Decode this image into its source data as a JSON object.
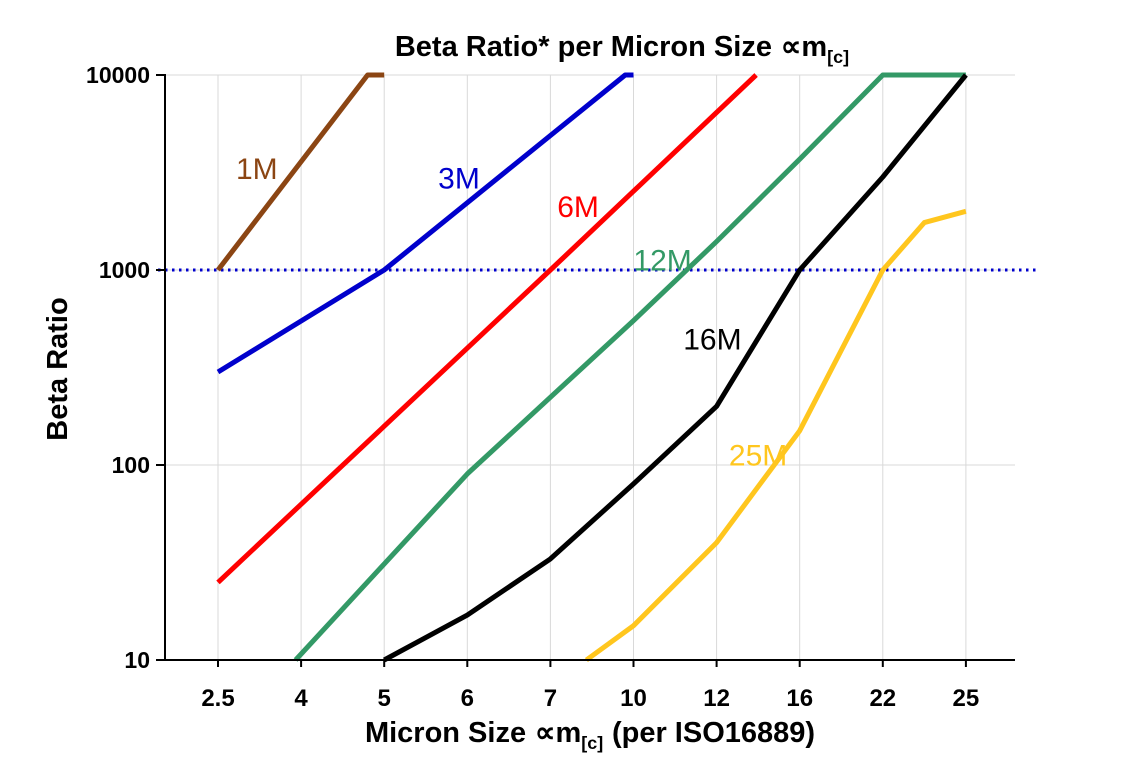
{
  "chart_data": {
    "type": "line",
    "title": {
      "text": "Beta Ratio* per Micron Size",
      "unit": "∝m",
      "unit_sub": "[c]"
    },
    "ylabel": "Beta Ratio",
    "xlabel": {
      "prefix": "Micron Size",
      "unit": "∝m",
      "unit_sub": "[c]",
      "suffix": "(per ISO16889)"
    },
    "x_scale": "ordinal",
    "y_scale": "log",
    "ylim": [
      10,
      10000
    ],
    "y_ticks": [
      10,
      100,
      1000,
      10000
    ],
    "categories": [
      2.5,
      4,
      5,
      6,
      7,
      10,
      12,
      16,
      22,
      25
    ],
    "grid": true,
    "legend": "inline-labels",
    "reference_line": {
      "y": 1000,
      "color": "#0000CC",
      "style": "dotted"
    },
    "series": [
      {
        "name": "1M",
        "color": "#8B4513",
        "points": [
          [
            2.5,
            1000
          ],
          [
            4.8,
            10000
          ],
          [
            5,
            10000
          ]
        ],
        "label_at": [
          3.2,
          3300
        ]
      },
      {
        "name": "3M",
        "color": "#0000CC",
        "points": [
          [
            2.5,
            300
          ],
          [
            5,
            1000
          ],
          [
            9.7,
            10000
          ],
          [
            10,
            10000
          ]
        ],
        "label_at": [
          5.9,
          2950
        ]
      },
      {
        "name": "6M",
        "color": "#FF0000",
        "points": [
          [
            2.5,
            25
          ],
          [
            7,
            1000
          ],
          [
            13.9,
            10000
          ]
        ],
        "label_at": [
          8.0,
          2100
        ]
      },
      {
        "name": "12M",
        "color": "#339966",
        "points": [
          [
            3.9,
            10
          ],
          [
            6,
            90
          ],
          [
            10,
            550
          ],
          [
            12,
            1400
          ],
          [
            16,
            3700
          ],
          [
            22,
            10000
          ],
          [
            25,
            10000
          ]
        ],
        "label_at": [
          10.7,
          1120
        ]
      },
      {
        "name": "16M",
        "color": "#000000",
        "points": [
          [
            5,
            10
          ],
          [
            6,
            17
          ],
          [
            7,
            33
          ],
          [
            10,
            80
          ],
          [
            12,
            200
          ],
          [
            16,
            1000
          ],
          [
            22,
            3000
          ],
          [
            25,
            10000
          ]
        ],
        "label_at": [
          11.9,
          440
        ]
      },
      {
        "name": "25M",
        "color": "#FFC61E",
        "points": [
          [
            8.3,
            10
          ],
          [
            10,
            15
          ],
          [
            12,
            40
          ],
          [
            16,
            150
          ],
          [
            22,
            1000
          ],
          [
            23.5,
            1750
          ],
          [
            25,
            2000
          ]
        ],
        "label_at": [
          14,
          112
        ]
      }
    ]
  },
  "style": {
    "grid_color": "#D9D9D9",
    "axis_color": "#000000",
    "tick_label_color": "#000000",
    "background": "#FFFFFF"
  }
}
